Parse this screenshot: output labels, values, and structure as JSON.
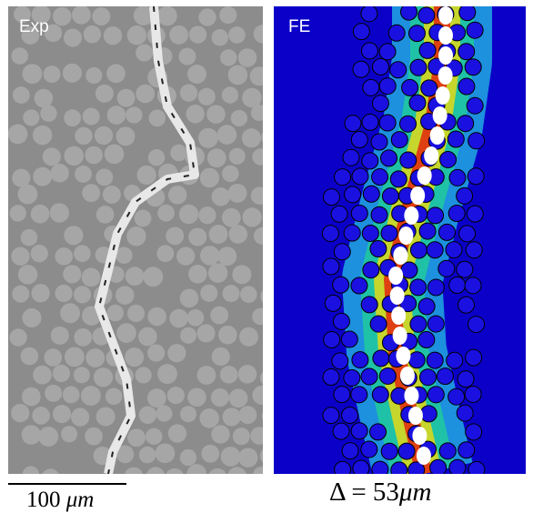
{
  "panels": {
    "experiment": {
      "label": "Exp"
    },
    "simulation": {
      "label": "FE"
    }
  },
  "scale_bar": {
    "value": "100",
    "unit": "μm"
  },
  "displacement": {
    "symbol": "Δ",
    "equals": " = ",
    "value": "53",
    "unit": "μm"
  },
  "colors": {
    "exp_matrix": "#8c8c8c",
    "exp_fiber": "#a6a6a6",
    "fe_background": "#0b00c8",
    "fe_fiber": "#1a10e0",
    "fe_stress_hot": "#e03010"
  }
}
